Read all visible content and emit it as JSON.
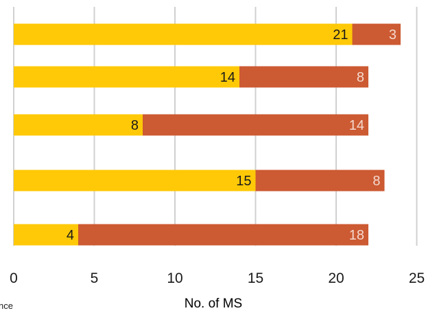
{
  "chart_data": {
    "type": "bar",
    "orientation": "horizontal",
    "stacked": true,
    "categories": [
      "",
      "",
      "",
      "",
      ""
    ],
    "series": [
      {
        "values": [
          21,
          14,
          8,
          15,
          4
        ],
        "color": "#FFC907"
      },
      {
        "values": [
          3,
          8,
          14,
          8,
          18
        ],
        "color": "#CC5A32"
      }
    ],
    "data_labels": [
      [
        "21",
        "14",
        "8",
        "15",
        "4"
      ],
      [
        "3",
        "8",
        "14",
        "8",
        "18"
      ]
    ],
    "x_ticks": [
      "0",
      "5",
      "10",
      "15",
      "20",
      "25"
    ],
    "xlim": [
      0,
      25
    ],
    "xlabel": "No. of MS",
    "grid": "vertical",
    "legend": "none"
  },
  "clipped_text": "nce",
  "colors": {
    "gridline": "#D0D0D0",
    "axis_text": "#1a1a1a",
    "label_on_yellow": "#1a1a1a",
    "label_on_orange": "#F5D9CF"
  }
}
